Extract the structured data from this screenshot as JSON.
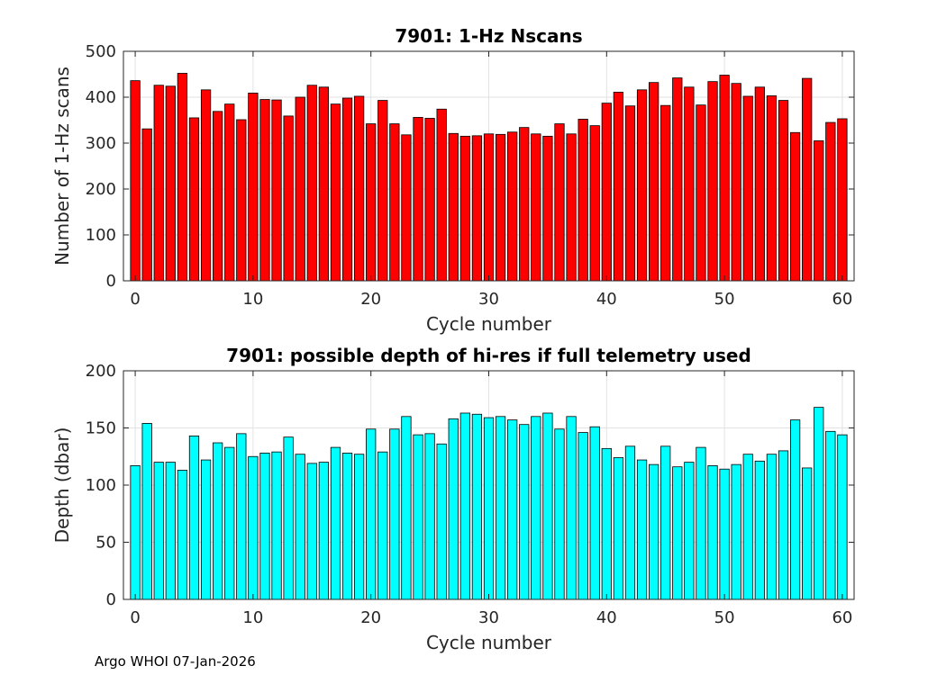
{
  "footer": "Argo WHOI 07-Jan-2026",
  "chart_data": [
    {
      "type": "bar",
      "title": "7901: 1-Hz Nscans",
      "xlabel": "Cycle number",
      "ylabel": "Number of 1-Hz scans",
      "color": "#ff0000",
      "grid": true,
      "xlim": [
        -1,
        61
      ],
      "ylim": [
        0,
        500
      ],
      "xticks": [
        0,
        10,
        20,
        30,
        40,
        50,
        60
      ],
      "yticks": [
        0,
        100,
        200,
        300,
        400,
        500
      ],
      "x": [
        0,
        1,
        2,
        3,
        4,
        5,
        6,
        7,
        8,
        9,
        10,
        11,
        12,
        13,
        14,
        15,
        16,
        17,
        18,
        19,
        20,
        21,
        22,
        23,
        24,
        25,
        26,
        27,
        28,
        29,
        30,
        31,
        32,
        33,
        34,
        35,
        36,
        37,
        38,
        39,
        40,
        41,
        42,
        43,
        44,
        45,
        46,
        47,
        48,
        49,
        50,
        51,
        52,
        53,
        54,
        55,
        56,
        57,
        58,
        59,
        60
      ],
      "values": [
        436,
        331,
        426,
        424,
        452,
        355,
        416,
        369,
        385,
        351,
        409,
        395,
        394,
        359,
        400,
        426,
        422,
        385,
        398,
        402,
        342,
        393,
        342,
        318,
        356,
        354,
        374,
        321,
        315,
        316,
        320,
        319,
        324,
        334,
        320,
        315,
        342,
        320,
        352,
        338,
        387,
        411,
        381,
        416,
        432,
        382,
        442,
        422,
        383,
        434,
        448,
        430,
        402,
        422,
        403,
        393,
        323,
        441,
        305,
        345,
        353
      ]
    },
    {
      "type": "bar",
      "title": "7901: possible depth of hi-res if full telemetry used",
      "xlabel": "Cycle number",
      "ylabel": "Depth (dbar)",
      "color": "#00ffff",
      "grid": true,
      "xlim": [
        -1,
        61
      ],
      "ylim": [
        0,
        200
      ],
      "xticks": [
        0,
        10,
        20,
        30,
        40,
        50,
        60
      ],
      "yticks": [
        0,
        50,
        100,
        150,
        200
      ],
      "x": [
        0,
        1,
        2,
        3,
        4,
        5,
        6,
        7,
        8,
        9,
        10,
        11,
        12,
        13,
        14,
        15,
        16,
        17,
        18,
        19,
        20,
        21,
        22,
        23,
        24,
        25,
        26,
        27,
        28,
        29,
        30,
        31,
        32,
        33,
        34,
        35,
        36,
        37,
        38,
        39,
        40,
        41,
        42,
        43,
        44,
        45,
        46,
        47,
        48,
        49,
        50,
        51,
        52,
        53,
        54,
        55,
        56,
        57,
        58,
        59,
        60
      ],
      "values": [
        117,
        154,
        120,
        120,
        113,
        143,
        122,
        137,
        133,
        145,
        125,
        128,
        129,
        142,
        127,
        119,
        120,
        133,
        128,
        127,
        149,
        129,
        149,
        160,
        144,
        145,
        136,
        158,
        163,
        162,
        159,
        160,
        157,
        153,
        160,
        163,
        149,
        160,
        146,
        151,
        132,
        124,
        134,
        122,
        118,
        134,
        116,
        120,
        133,
        117,
        114,
        118,
        127,
        121,
        127,
        130,
        157,
        115,
        168,
        147,
        144
      ]
    }
  ]
}
